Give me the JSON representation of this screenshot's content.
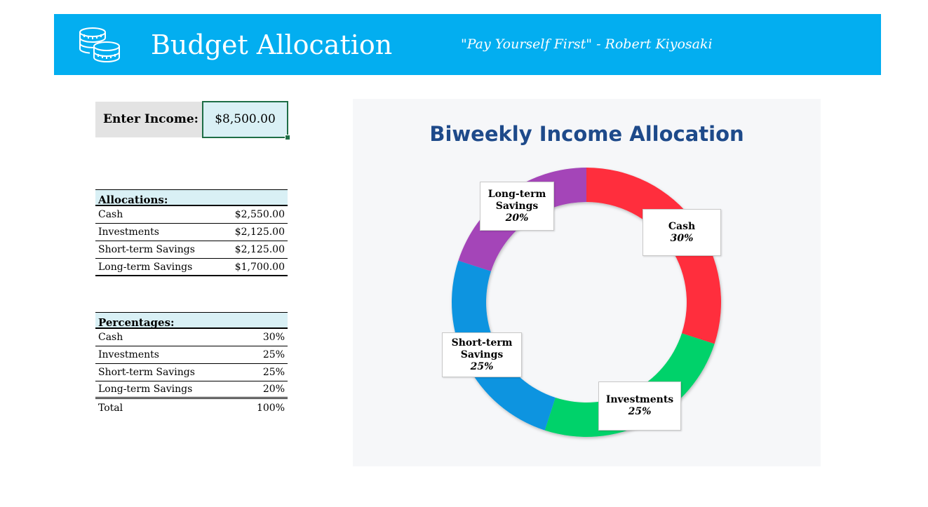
{
  "header": {
    "title": "Budget Allocation",
    "quote": "\"Pay Yourself First\"  - Robert Kiyosaki",
    "icon": "coins-icon",
    "color": "#03aef0"
  },
  "income": {
    "label": "Enter Income:",
    "value": "$8,500.00"
  },
  "allocations": {
    "header": "Allocations:",
    "rows": [
      {
        "name": "Cash",
        "value": "$2,550.00"
      },
      {
        "name": "Investments",
        "value": "$2,125.00"
      },
      {
        "name": "Short-term Savings",
        "value": "$2,125.00"
      },
      {
        "name": "Long-term Savings",
        "value": "$1,700.00"
      }
    ]
  },
  "percentages": {
    "header": "Percentages:",
    "rows": [
      {
        "name": "Cash",
        "value": "30%"
      },
      {
        "name": "Investments",
        "value": "25%"
      },
      {
        "name": "Short-term Savings",
        "value": "25%"
      },
      {
        "name": "Long-term Savings",
        "value": "20%"
      }
    ],
    "total": {
      "name": "Total",
      "value": "100%"
    }
  },
  "chart_data": {
    "type": "pie",
    "title": "Biweekly Income Allocation",
    "categories": [
      "Cash",
      "Investments",
      "Short-term Savings",
      "Long-term Savings"
    ],
    "values": [
      30,
      25,
      25,
      20
    ],
    "labels": [
      "30%",
      "25%",
      "25%",
      "20%"
    ],
    "colors": [
      "#ff2d3c",
      "#00d26a",
      "#0894e0",
      "#a445b8"
    ],
    "donut": true,
    "legend": "none"
  }
}
